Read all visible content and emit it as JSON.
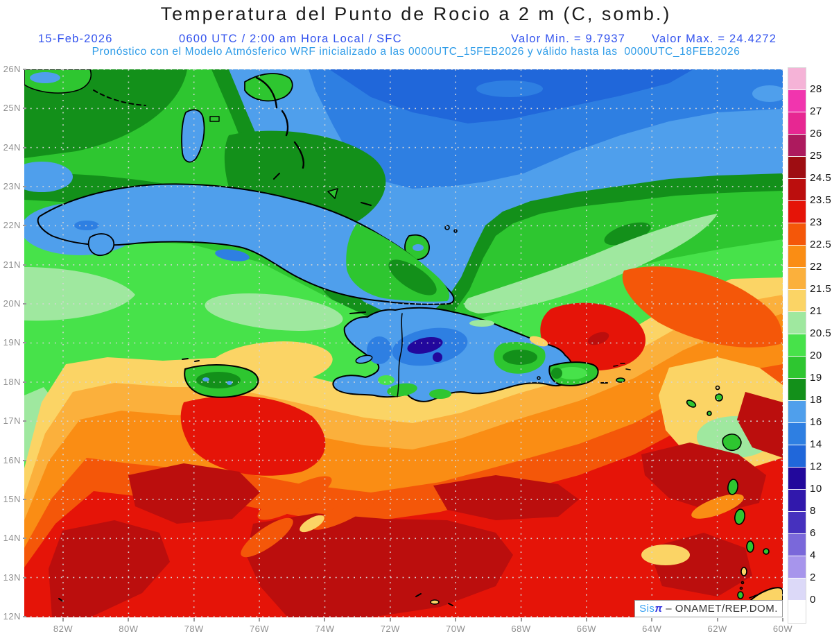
{
  "header": {
    "title": "Temperatura del Punto de Rocio a 2 m (C, somb.)",
    "date": "15-Feb-2026",
    "time_info": "0600 UTC / 2:00 am Hora Local / SFC",
    "min_label": "Valor Min. = 9.7937",
    "max_label": "Valor Max. = 24.4272",
    "model_line": "Pronóstico con el Modelo Atmósferico WRF inicializado a las 0000UTC_15FEB2026 y válido hasta las  0000UTC_18FEB2026"
  },
  "axes": {
    "lat_labels": [
      "26N",
      "25N",
      "24N",
      "23N",
      "22N",
      "21N",
      "20N",
      "19N",
      "18N",
      "17N",
      "16N",
      "15N",
      "14N",
      "13N",
      "12N"
    ],
    "lon_labels": [
      "82W",
      "80W",
      "78W",
      "76W",
      "74W",
      "72W",
      "70W",
      "68W",
      "66W",
      "64W",
      "62W",
      "60W"
    ]
  },
  "colorbar": {
    "labels": [
      "28",
      "27",
      "26",
      "25",
      "24.5",
      "23.5",
      "23",
      "22.5",
      "22",
      "21.5",
      "21",
      "20.5",
      "20",
      "19",
      "18",
      "16",
      "14",
      "12",
      "10",
      "8",
      "6",
      "4",
      "2",
      "0"
    ],
    "colors": [
      "#F5B3D7",
      "#F135AE",
      "#E72792",
      "#AD1A5E",
      "#9E0D12",
      "#BB0E0D",
      "#E51408",
      "#F45709",
      "#FA8D14",
      "#FBB03C",
      "#FBD465",
      "#9FE89F",
      "#47E24A",
      "#2EC630",
      "#13901A",
      "#4F9FEC",
      "#2E7FE2",
      "#2067DA",
      "#22089C",
      "#3118AC",
      "#4631BE",
      "#7A68DA",
      "#A795EC",
      "#DCD9F8",
      "#FFFFFF"
    ]
  },
  "attribution": {
    "sis": "Sis",
    "pi": "π",
    "rest": " – ONAMET/REP.DOM."
  },
  "chart_data": {
    "type": "heatmap",
    "title": "Temperatura del Punto de Rocio a 2 m (C, somb.)",
    "variable": "Dew point temperature at 2 m",
    "units": "C",
    "valid_time": "15-Feb-2026 0600 UTC / 2:00 am Hora Local / SFC",
    "model": "WRF inicializado a las 0000UTC_15FEB2026, válido hasta las 0000UTC_18FEB2026",
    "value_min": 9.7937,
    "value_max": 24.4272,
    "lat_range": [
      "12N",
      "26N"
    ],
    "lon_range": [
      "82W",
      "60W"
    ],
    "contour_levels": [
      0,
      2,
      4,
      6,
      8,
      10,
      12,
      14,
      16,
      18,
      19,
      20,
      20.5,
      21,
      21.5,
      22,
      22.5,
      23,
      23.5,
      24.5,
      25,
      26,
      27,
      28
    ],
    "palette_low_to_high": [
      "#FFFFFF",
      "#DCD9F8",
      "#A795EC",
      "#7A68DA",
      "#4631BE",
      "#3118AC",
      "#22089C",
      "#2067DA",
      "#2E7FE2",
      "#4F9FEC",
      "#13901A",
      "#2EC630",
      "#47E24A",
      "#9FE89F",
      "#FBD465",
      "#FBB03C",
      "#FA8D14",
      "#F45709",
      "#E51408",
      "#BB0E0D",
      "#9E0D12",
      "#AD1A5E",
      "#E72792",
      "#F135AE",
      "#F5B3D7"
    ],
    "notes": "Blue dry cold air mass (12-18C) over the Atlantic north of ~22N and over the interiors of Cuba and Hispaniola (dark navy minimum ~10C over central Hispaniola); greens (18-21C) over Bahamas and Greater Antilles; yellow-orange-red (21-24.5C) over the Caribbean Sea south of ~18N with darkest reds south of ~15N"
  }
}
